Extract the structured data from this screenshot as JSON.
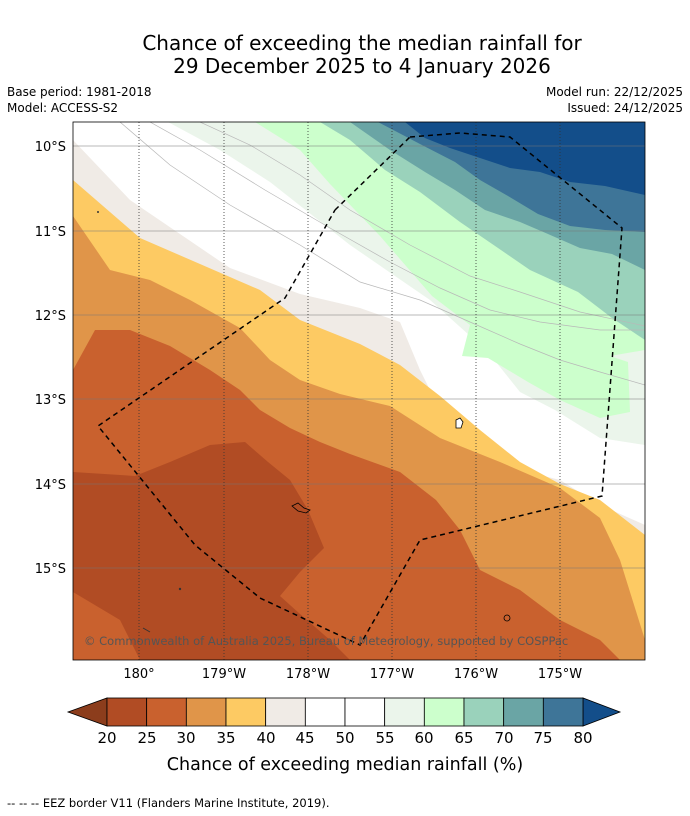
{
  "title": {
    "line1": "Chance of exceeding the median rainfall for",
    "line2": "29 December 2025 to 4 January 2026"
  },
  "meta": {
    "base_period": "Base period: 1981-2018",
    "model": "Model: ACCESS-S2",
    "model_run": "Model run: 22/12/2025",
    "issued": "Issued: 24/12/2025"
  },
  "map": {
    "lat_labels": [
      "10°S",
      "11°S",
      "12°S",
      "13°S",
      "14°S",
      "15°S"
    ],
    "lon_labels": [
      "180°",
      "179°W",
      "178°W",
      "177°W",
      "176°W",
      "175°W"
    ],
    "copyright": "© Commonwealth of Australia 2025, Bureau of Meteorology, supported by COSPPac"
  },
  "colorbar": {
    "ticks": [
      "20",
      "25",
      "30",
      "35",
      "40",
      "45",
      "50",
      "55",
      "60",
      "65",
      "70",
      "75",
      "80"
    ],
    "label": "Chance of exceeding median rainfall (%)",
    "colors": {
      "below_20": "#8c3d1c",
      "20_25": "#b14c24",
      "25_30": "#c9612e",
      "30_35": "#e09549",
      "35_40": "#fdca63",
      "40_45": "#f0ebe6",
      "45_50": "#ffffff",
      "50_55": "#ffffff",
      "55_60": "#ebf5eb",
      "60_65": "#ccffcc",
      "65_70": "#9ad2bb",
      "70_75": "#6aa5a5",
      "75_80": "#3e7598",
      "above_80": "#134e8a"
    }
  },
  "legend_note": "-- -- -- EEZ border V11 (Flanders Marine Institute, 2019)."
}
